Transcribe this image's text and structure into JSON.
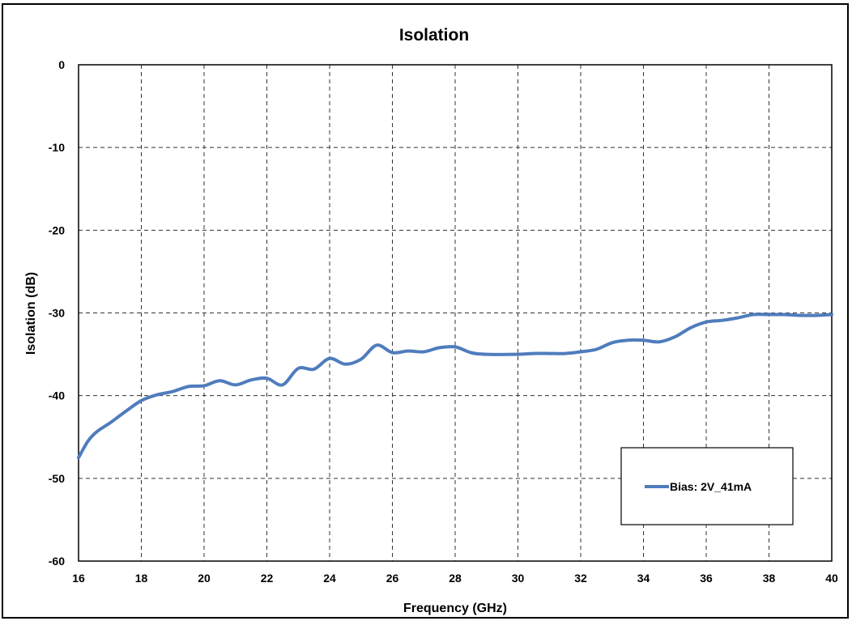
{
  "chart_data": {
    "type": "line",
    "title": "Isolation",
    "xlabel": "Frequency (GHz)",
    "ylabel": "Isolation (dB)",
    "xlim": [
      16,
      40
    ],
    "ylim": [
      -60,
      0
    ],
    "xticks": [
      16,
      18,
      20,
      22,
      24,
      26,
      28,
      30,
      32,
      34,
      36,
      38,
      40
    ],
    "yticks": [
      0,
      -10,
      -20,
      -30,
      -40,
      -50,
      -60
    ],
    "grid": true,
    "legend_position": "bottom-right",
    "series": [
      {
        "name": "Bias: 2V_41mA",
        "color": "#4F7CBD",
        "x": [
          16,
          16.3,
          16.6,
          17,
          17.5,
          18,
          18.5,
          19,
          19.5,
          20,
          20.5,
          21,
          21.5,
          22,
          22.5,
          23,
          23.5,
          24,
          24.5,
          25,
          25.5,
          26,
          26.5,
          27,
          27.5,
          28,
          28.5,
          29,
          30,
          30.5,
          31,
          31.5,
          32,
          32.5,
          33,
          33.5,
          34,
          34.5,
          35,
          35.5,
          36,
          36.5,
          37,
          37.5,
          38,
          38.5,
          39,
          39.5,
          40
        ],
        "y": [
          -47.5,
          -45.5,
          -44.3,
          -43.3,
          -41.9,
          -40.6,
          -39.9,
          -39.5,
          -38.9,
          -38.8,
          -38.2,
          -38.7,
          -38.1,
          -37.9,
          -38.7,
          -36.7,
          -36.8,
          -35.5,
          -36.2,
          -35.6,
          -33.9,
          -34.8,
          -34.6,
          -34.7,
          -34.2,
          -34.1,
          -34.8,
          -35.0,
          -35.0,
          -34.9,
          -34.9,
          -34.9,
          -34.7,
          -34.4,
          -33.6,
          -33.3,
          -33.3,
          -33.5,
          -32.9,
          -31.8,
          -31.1,
          -30.9,
          -30.6,
          -30.2,
          -30.2,
          -30.2,
          -30.3,
          -30.3,
          -30.2
        ]
      }
    ]
  }
}
